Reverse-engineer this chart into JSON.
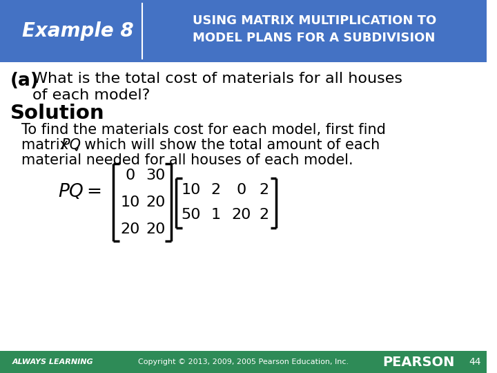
{
  "header_bg_color": "#4472C4",
  "header_text_color": "#FFFFFF",
  "example_label": "Example 8",
  "title_line1": "USING MATRIX MULTIPLICATION TO",
  "title_line2": "MODEL PLANS FOR A SUBDIVISION",
  "solution_label": "Solution",
  "body1": "To find the materials cost for each model, first find",
  "body2a": "matrix ",
  "body2b": "PQ",
  "body2c": ", which will show the total amount of each",
  "body3": "material needed for all houses of each model.",
  "footer_bg_color": "#2E8B57",
  "footer_left": "ALWAYS LEARNING",
  "footer_center": "Copyright © 2013, 2009, 2005 Pearson Education, Inc.",
  "footer_right": "PEARSON",
  "footer_page": "44",
  "bg_color": "#FFFFFF",
  "matrix_P": [
    [
      0,
      30
    ],
    [
      10,
      20
    ],
    [
      20,
      20
    ]
  ],
  "matrix_Q": [
    [
      10,
      2,
      0,
      2
    ],
    [
      50,
      1,
      20,
      2
    ]
  ]
}
